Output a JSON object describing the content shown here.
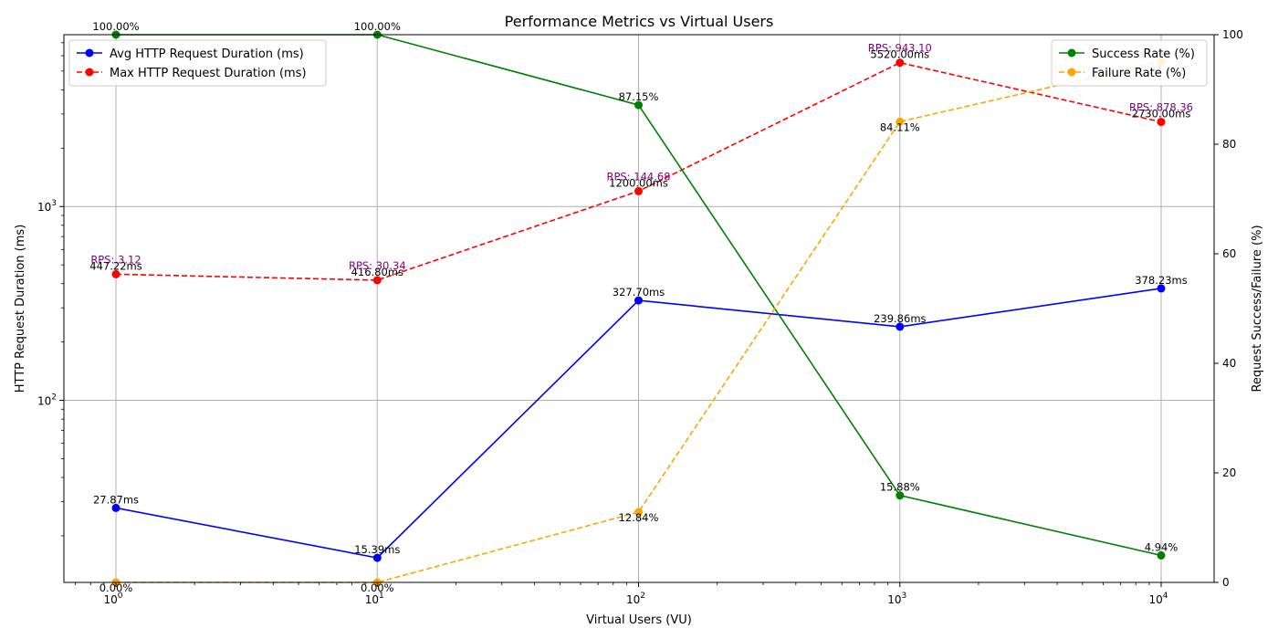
{
  "chart_data": {
    "type": "line",
    "title": "Performance Metrics vs Virtual Users",
    "xlabel": "Virtual Users (VU)",
    "ylabel_left": "HTTP Request Duration (ms)",
    "ylabel_right": "Request Success/Failure (%)",
    "x_scale": "log",
    "y_left_scale": "log",
    "grid": true,
    "x": [
      1,
      10,
      100,
      1000,
      10000
    ],
    "x_tick_labels": [
      {
        "base": "10",
        "exp": "0"
      },
      {
        "base": "10",
        "exp": "1"
      },
      {
        "base": "10",
        "exp": "2"
      },
      {
        "base": "10",
        "exp": "3"
      },
      {
        "base": "10",
        "exp": "4"
      }
    ],
    "y_left_tick_labels": [
      {
        "value": 100,
        "base": "10",
        "exp": "2"
      },
      {
        "value": 1000,
        "base": "10",
        "exp": "3"
      }
    ],
    "ylim_left": [
      11.5,
      7700
    ],
    "ylim_right": [
      0,
      100
    ],
    "y_right_ticks": [
      0,
      20,
      40,
      60,
      80,
      100
    ],
    "y_right_tick_labels": [
      "0",
      "20",
      "40",
      "60",
      "80",
      "100"
    ],
    "series": [
      {
        "name": "Avg HTTP Request Duration (ms)",
        "axis": "left",
        "color": "#0000ff",
        "style": "solid",
        "values": [
          27.87,
          15.39,
          327.7,
          239.86,
          378.23
        ],
        "labels": [
          "27.87ms",
          "15.39ms",
          "327.70ms",
          "239.86ms",
          "378.23ms"
        ]
      },
      {
        "name": "Max HTTP Request Duration (ms)",
        "axis": "left",
        "color": "#ff0000",
        "style": "dashed",
        "values": [
          447.22,
          416.8,
          1200.0,
          5520.0,
          2730.0
        ],
        "labels": [
          "447.22ms",
          "416.80ms",
          "1200.00ms",
          "5520.00ms",
          "2730.00ms"
        ],
        "rps_labels": [
          "RPS: 3.12",
          "RPS: 30.34",
          "RPS: 144.68",
          "RPS: 943.10",
          "RPS: 878.36"
        ]
      },
      {
        "name": "Success Rate (%)",
        "axis": "right",
        "color": "#008000",
        "style": "solid",
        "values": [
          100.0,
          100.0,
          87.15,
          15.88,
          4.94
        ],
        "labels": [
          "100.00%",
          "100.00%",
          "87.15%",
          "15.88%",
          "4.94%"
        ]
      },
      {
        "name": "Failure Rate (%)",
        "axis": "right",
        "color": "#ffa500",
        "style": "dashed",
        "values": [
          0.0,
          0.0,
          12.84,
          84.11,
          95.06
        ],
        "labels": [
          "0.00%",
          "0.00%",
          "12.84%",
          "84.11%",
          ""
        ]
      }
    ],
    "legend_left": {
      "placement": "upper-left",
      "entries": [
        "Avg HTTP Request Duration (ms)",
        "Max HTTP Request Duration (ms)"
      ]
    },
    "legend_right": {
      "placement": "upper-right",
      "entries": [
        "Success Rate (%)",
        "Failure Rate (%)"
      ]
    }
  }
}
